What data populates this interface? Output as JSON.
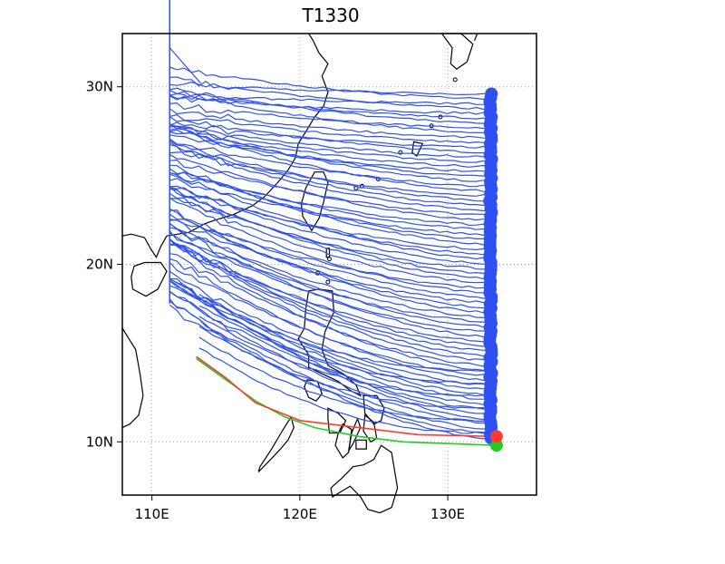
{
  "title": "T1330",
  "map": {
    "lon_range": [
      108,
      136
    ],
    "lat_range": [
      7,
      33
    ],
    "gridlines": "dotted",
    "x_ticks": [
      {
        "value": 110,
        "label": "110E"
      },
      {
        "value": 120,
        "label": "120E"
      },
      {
        "value": 130,
        "label": "130E"
      }
    ],
    "y_ticks": [
      {
        "value": 10,
        "label": "10N"
      },
      {
        "value": 20,
        "label": "20N"
      },
      {
        "value": 30,
        "label": "30N"
      }
    ],
    "coastline_color": "#000000"
  },
  "tracks": {
    "ensemble_color": "#2f50f0",
    "ensemble_count": 72,
    "start_lon": 132.9,
    "start_lat_range": [
      10.2,
      29.6
    ],
    "end_lon": 111.2,
    "red_track": {
      "color": "#ff3b2f",
      "points": [
        [
          133.3,
          10.3
        ],
        [
          128,
          10.4
        ],
        [
          124,
          10.8
        ],
        [
          120,
          11.2
        ],
        [
          117,
          12.2
        ],
        [
          115,
          13.6
        ],
        [
          113,
          14.8
        ]
      ]
    },
    "green_track": {
      "color": "#22cc22",
      "points": [
        [
          133.3,
          9.8
        ],
        [
          130,
          9.9
        ],
        [
          127,
          10.0
        ],
        [
          124,
          10.3
        ],
        [
          121,
          10.8
        ],
        [
          119,
          11.4
        ],
        [
          117,
          12.3
        ],
        [
          115,
          13.5
        ],
        [
          113,
          14.7
        ]
      ]
    },
    "vertical_line": {
      "lon": 111.2,
      "lat_top": 33
    }
  }
}
